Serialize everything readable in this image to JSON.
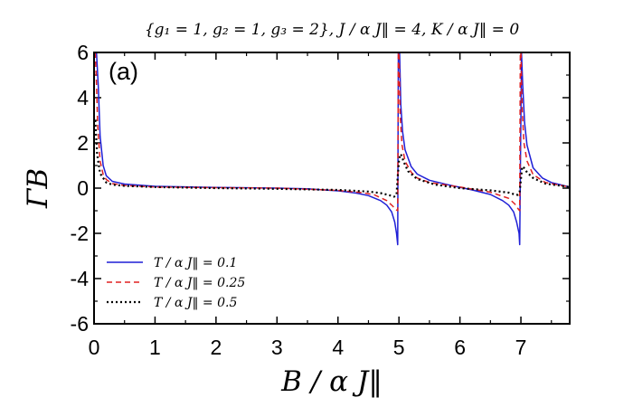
{
  "chart_data": {
    "type": "line",
    "title": "{g₁ = 1,  g₂ = 1,  g₃ = 2}, J / α J‖ = 4,  K / α J‖ = 0",
    "panel_label": "(a)",
    "xlabel": "B / α J‖",
    "ylabel": "ΓB",
    "xlim": [
      0,
      7.8
    ],
    "ylim": [
      -6,
      6
    ],
    "xticks": [
      0,
      1,
      2,
      3,
      4,
      5,
      6,
      7
    ],
    "yticks": [
      6,
      4,
      2,
      0,
      -2,
      -4,
      -6
    ],
    "legend_position": "bottom-left",
    "series": [
      {
        "name": "T / α J‖  =  0.1",
        "color": "#1f1fd6",
        "dash": "solid",
        "x": [
          0.04,
          0.07,
          0.1,
          0.15,
          0.2,
          0.3,
          0.5,
          1.0,
          2.0,
          3.0,
          3.5,
          4.0,
          4.3,
          4.5,
          4.7,
          4.8,
          4.88,
          4.93,
          4.96,
          4.98,
          4.99,
          5.01,
          5.03,
          5.06,
          5.1,
          5.2,
          5.3,
          5.5,
          5.8,
          6.2,
          6.5,
          6.7,
          6.8,
          6.88,
          6.93,
          6.97,
          6.98,
          7.01,
          7.03,
          7.06,
          7.1,
          7.2,
          7.35,
          7.5,
          7.8
        ],
        "y": [
          6.0,
          4.5,
          2.3,
          1.0,
          0.55,
          0.3,
          0.18,
          0.08,
          0.03,
          0.0,
          -0.03,
          -0.12,
          -0.22,
          -0.33,
          -0.55,
          -0.75,
          -1.05,
          -1.5,
          -2.0,
          -2.5,
          6.0,
          6.0,
          3.7,
          2.5,
          1.7,
          0.95,
          0.62,
          0.35,
          0.15,
          -0.08,
          -0.28,
          -0.55,
          -0.75,
          -1.05,
          -1.5,
          -2.0,
          -2.5,
          6.0,
          4.5,
          2.9,
          1.9,
          0.9,
          0.45,
          0.25,
          0.05
        ]
      },
      {
        "name": "T / α J‖  =  0.25",
        "color": "#e02020",
        "dash": "6,4",
        "x": [
          0.02,
          0.04,
          0.06,
          0.1,
          0.15,
          0.2,
          0.3,
          0.5,
          1.0,
          2.0,
          3.0,
          4.0,
          4.4,
          4.6,
          4.8,
          4.9,
          4.95,
          4.98,
          4.99,
          5.0,
          5.02,
          5.05,
          5.1,
          5.2,
          5.3,
          5.5,
          6.0,
          6.5,
          6.8,
          6.9,
          6.95,
          6.98,
          6.99,
          7.0,
          7.02,
          7.05,
          7.1,
          7.2,
          7.4,
          7.8
        ],
        "y": [
          6.0,
          4.6,
          2.8,
          1.2,
          0.6,
          0.38,
          0.2,
          0.12,
          0.05,
          0.02,
          0.0,
          -0.1,
          -0.2,
          -0.3,
          -0.55,
          -0.8,
          -0.95,
          -1.0,
          6.0,
          6.0,
          3.2,
          1.9,
          1.2,
          0.7,
          0.45,
          0.25,
          0.05,
          -0.18,
          -0.45,
          -0.7,
          -0.9,
          -1.0,
          6.0,
          6.0,
          3.5,
          2.0,
          1.2,
          0.6,
          0.25,
          0.05
        ]
      },
      {
        "name": "T / α J‖  =  0.5",
        "color": "#000000",
        "dash": "2,3",
        "x": [
          0.02,
          0.05,
          0.1,
          0.2,
          0.3,
          0.5,
          1.0,
          2.0,
          3.0,
          4.0,
          4.5,
          4.7,
          4.85,
          4.92,
          4.96,
          4.98,
          5.0,
          5.02,
          5.04,
          5.08,
          5.15,
          5.3,
          5.6,
          6.0,
          6.5,
          6.8,
          6.9,
          6.95,
          6.98,
          7.0,
          7.02,
          7.05,
          7.1,
          7.2,
          7.4,
          7.8
        ],
        "y": [
          3.0,
          1.5,
          0.65,
          0.25,
          0.15,
          0.1,
          0.05,
          0.0,
          -0.03,
          -0.08,
          -0.15,
          -0.22,
          -0.32,
          -0.38,
          -0.3,
          0.5,
          1.2,
          1.5,
          1.45,
          1.15,
          0.75,
          0.4,
          0.15,
          0.0,
          -0.1,
          -0.2,
          -0.28,
          -0.3,
          -0.15,
          0.4,
          0.95,
          0.9,
          0.7,
          0.45,
          0.2,
          0.05
        ]
      }
    ]
  }
}
